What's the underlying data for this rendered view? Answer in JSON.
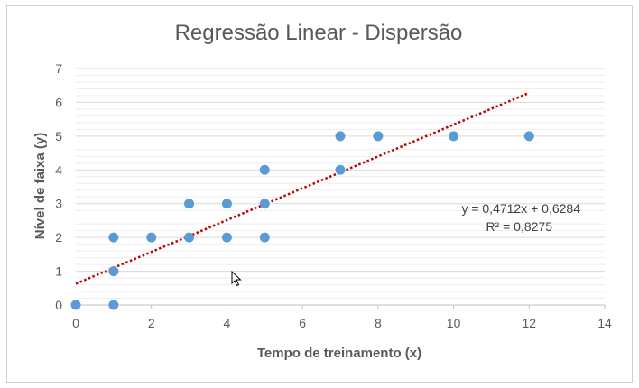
{
  "chart_data": {
    "type": "scatter",
    "title": "Regressão Linear - Dispersão",
    "xlabel": "Tempo de treinamento (x)",
    "ylabel": "Nível de faixa (y)",
    "xlim": [
      0,
      14
    ],
    "ylim": [
      0,
      7
    ],
    "xticks": [
      "0",
      "2",
      "4",
      "6",
      "8",
      "10",
      "12",
      "14"
    ],
    "yticks": [
      "0",
      "1",
      "2",
      "3",
      "4",
      "5",
      "6",
      "7"
    ],
    "grid": "horizontal major and minor",
    "legend": "none",
    "series": [
      {
        "x": [
          0,
          1,
          1,
          1,
          2,
          3,
          3,
          4,
          4,
          5,
          5,
          5,
          7,
          7,
          8,
          10,
          12
        ],
        "y": [
          0,
          0,
          1,
          2,
          2,
          2,
          3,
          2,
          3,
          2,
          3,
          4,
          4,
          5,
          5,
          5,
          5
        ],
        "color": "#5b9bd5"
      }
    ],
    "trendline": {
      "type": "linear",
      "style": "dotted",
      "color": "#c00000",
      "x_range": [
        0,
        12
      ],
      "slope": 0.4712,
      "intercept": 0.6284,
      "equation": "y = 0,4712x + 0,6284",
      "r_squared": "R² = 0,8275"
    }
  }
}
